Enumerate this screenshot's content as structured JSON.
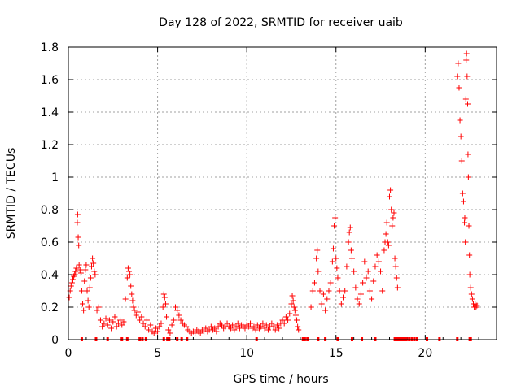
{
  "chart_data": {
    "type": "scatter",
    "title": "Day 128 of 2022, SRMTID for receiver uaib",
    "xlabel": "GPS time / hours",
    "ylabel": "SRMTID / TECUs",
    "xlim": [
      0,
      24
    ],
    "ylim": [
      0,
      1.8
    ],
    "xticks": [
      0,
      5,
      10,
      15,
      20
    ],
    "yticks": [
      0,
      0.2,
      0.4,
      0.6,
      0.8,
      1,
      1.2,
      1.4,
      1.6,
      1.8
    ],
    "xtick_labels": [
      "0",
      "5",
      "10",
      "15",
      "20"
    ],
    "ytick_labels": [
      "0",
      "0.2",
      "0.4",
      "0.6",
      "0.8",
      "1",
      "1.2",
      "1.4",
      "1.6",
      "1.8"
    ],
    "grid": true,
    "marker": "+",
    "color": "#ff0000",
    "series": [
      {
        "name": "SRMTID",
        "points": [
          [
            0.05,
            0.26
          ],
          [
            0.1,
            0.3
          ],
          [
            0.15,
            0.33
          ],
          [
            0.2,
            0.35
          ],
          [
            0.25,
            0.37
          ],
          [
            0.3,
            0.39
          ],
          [
            0.35,
            0.4
          ],
          [
            0.4,
            0.42
          ],
          [
            0.45,
            0.44
          ],
          [
            0.5,
            0.72
          ],
          [
            0.52,
            0.77
          ],
          [
            0.55,
            0.63
          ],
          [
            0.58,
            0.58
          ],
          [
            0.6,
            0.46
          ],
          [
            0.65,
            0.43
          ],
          [
            0.7,
            0.41
          ],
          [
            0.75,
            0.3
          ],
          [
            0.8,
            0.22
          ],
          [
            0.85,
            0.18
          ],
          [
            0.9,
            0.36
          ],
          [
            0.95,
            0.43
          ],
          [
            1.0,
            0.46
          ],
          [
            1.05,
            0.3
          ],
          [
            1.1,
            0.24
          ],
          [
            1.15,
            0.2
          ],
          [
            1.2,
            0.32
          ],
          [
            1.25,
            0.38
          ],
          [
            1.3,
            0.45
          ],
          [
            1.35,
            0.5
          ],
          [
            1.4,
            0.47
          ],
          [
            1.45,
            0.42
          ],
          [
            1.5,
            0.4
          ],
          [
            1.6,
            0.18
          ],
          [
            1.7,
            0.2
          ],
          [
            1.8,
            0.12
          ],
          [
            1.9,
            0.08
          ],
          [
            2.0,
            0.1
          ],
          [
            2.1,
            0.13
          ],
          [
            2.2,
            0.09
          ],
          [
            2.3,
            0.12
          ],
          [
            2.4,
            0.07
          ],
          [
            2.5,
            0.11
          ],
          [
            2.6,
            0.14
          ],
          [
            2.7,
            0.08
          ],
          [
            2.8,
            0.1
          ],
          [
            2.9,
            0.12
          ],
          [
            3.0,
            0.09
          ],
          [
            3.1,
            0.11
          ],
          [
            3.2,
            0.25
          ],
          [
            3.3,
            0.38
          ],
          [
            3.35,
            0.44
          ],
          [
            3.4,
            0.42
          ],
          [
            3.45,
            0.4
          ],
          [
            3.5,
            0.33
          ],
          [
            3.55,
            0.28
          ],
          [
            3.6,
            0.24
          ],
          [
            3.65,
            0.2
          ],
          [
            3.7,
            0.18
          ],
          [
            3.8,
            0.15
          ],
          [
            3.9,
            0.17
          ],
          [
            4.0,
            0.12
          ],
          [
            4.1,
            0.14
          ],
          [
            4.2,
            0.1
          ],
          [
            4.3,
            0.08
          ],
          [
            4.4,
            0.12
          ],
          [
            4.5,
            0.06
          ],
          [
            4.6,
            0.09
          ],
          [
            4.7,
            0.05
          ],
          [
            4.8,
            0.04
          ],
          [
            4.9,
            0.07
          ],
          [
            5.0,
            0.05
          ],
          [
            5.1,
            0.08
          ],
          [
            5.2,
            0.1
          ],
          [
            5.3,
            0.2
          ],
          [
            5.35,
            0.28
          ],
          [
            5.4,
            0.26
          ],
          [
            5.45,
            0.22
          ],
          [
            5.5,
            0.14
          ],
          [
            5.6,
            0.06
          ],
          [
            5.7,
            0.04
          ],
          [
            5.8,
            0.09
          ],
          [
            5.9,
            0.12
          ],
          [
            6.0,
            0.2
          ],
          [
            6.1,
            0.18
          ],
          [
            6.2,
            0.15
          ],
          [
            6.3,
            0.12
          ],
          [
            6.4,
            0.1
          ],
          [
            6.5,
            0.09
          ],
          [
            6.6,
            0.08
          ],
          [
            6.7,
            0.06
          ],
          [
            6.8,
            0.05
          ],
          [
            6.9,
            0.04
          ],
          [
            7.0,
            0.05
          ],
          [
            7.1,
            0.04
          ],
          [
            7.2,
            0.06
          ],
          [
            7.3,
            0.05
          ],
          [
            7.4,
            0.04
          ],
          [
            7.5,
            0.06
          ],
          [
            7.6,
            0.05
          ],
          [
            7.7,
            0.07
          ],
          [
            7.8,
            0.05
          ],
          [
            7.9,
            0.06
          ],
          [
            8.0,
            0.08
          ],
          [
            8.1,
            0.06
          ],
          [
            8.2,
            0.07
          ],
          [
            8.3,
            0.05
          ],
          [
            8.4,
            0.08
          ],
          [
            8.5,
            0.1
          ],
          [
            8.6,
            0.09
          ],
          [
            8.7,
            0.07
          ],
          [
            8.8,
            0.08
          ],
          [
            8.9,
            0.1
          ],
          [
            9.0,
            0.08
          ],
          [
            9.1,
            0.07
          ],
          [
            9.2,
            0.09
          ],
          [
            9.3,
            0.06
          ],
          [
            9.4,
            0.08
          ],
          [
            9.5,
            0.1
          ],
          [
            9.6,
            0.07
          ],
          [
            9.7,
            0.09
          ],
          [
            9.8,
            0.08
          ],
          [
            9.9,
            0.07
          ],
          [
            10.0,
            0.09
          ],
          [
            10.1,
            0.08
          ],
          [
            10.2,
            0.1
          ],
          [
            10.3,
            0.07
          ],
          [
            10.4,
            0.08
          ],
          [
            10.5,
            0.06
          ],
          [
            10.6,
            0.09
          ],
          [
            10.7,
            0.07
          ],
          [
            10.8,
            0.08
          ],
          [
            10.9,
            0.1
          ],
          [
            11.0,
            0.07
          ],
          [
            11.1,
            0.09
          ],
          [
            11.2,
            0.06
          ],
          [
            11.3,
            0.08
          ],
          [
            11.4,
            0.1
          ],
          [
            11.5,
            0.08
          ],
          [
            11.6,
            0.06
          ],
          [
            11.7,
            0.09
          ],
          [
            11.8,
            0.07
          ],
          [
            11.9,
            0.1
          ],
          [
            12.0,
            0.12
          ],
          [
            12.1,
            0.1
          ],
          [
            12.2,
            0.14
          ],
          [
            12.3,
            0.12
          ],
          [
            12.4,
            0.16
          ],
          [
            12.5,
            0.22
          ],
          [
            12.55,
            0.27
          ],
          [
            12.6,
            0.24
          ],
          [
            12.65,
            0.2
          ],
          [
            12.7,
            0.18
          ],
          [
            12.75,
            0.15
          ],
          [
            12.8,
            0.12
          ],
          [
            12.85,
            0.08
          ],
          [
            12.9,
            0.06
          ],
          [
            13.6,
            0.2
          ],
          [
            13.7,
            0.3
          ],
          [
            13.8,
            0.35
          ],
          [
            13.9,
            0.5
          ],
          [
            13.95,
            0.55
          ],
          [
            14.0,
            0.42
          ],
          [
            14.1,
            0.3
          ],
          [
            14.2,
            0.22
          ],
          [
            14.3,
            0.28
          ],
          [
            14.4,
            0.18
          ],
          [
            14.5,
            0.25
          ],
          [
            14.6,
            0.3
          ],
          [
            14.7,
            0.35
          ],
          [
            14.8,
            0.48
          ],
          [
            14.85,
            0.56
          ],
          [
            14.9,
            0.7
          ],
          [
            14.95,
            0.75
          ],
          [
            15.0,
            0.5
          ],
          [
            15.05,
            0.44
          ],
          [
            15.1,
            0.38
          ],
          [
            15.2,
            0.3
          ],
          [
            15.3,
            0.22
          ],
          [
            15.4,
            0.26
          ],
          [
            15.5,
            0.3
          ],
          [
            15.6,
            0.45
          ],
          [
            15.7,
            0.6
          ],
          [
            15.75,
            0.66
          ],
          [
            15.8,
            0.69
          ],
          [
            15.85,
            0.55
          ],
          [
            15.9,
            0.5
          ],
          [
            16.0,
            0.42
          ],
          [
            16.1,
            0.32
          ],
          [
            16.2,
            0.25
          ],
          [
            16.3,
            0.22
          ],
          [
            16.4,
            0.28
          ],
          [
            16.5,
            0.35
          ],
          [
            16.6,
            0.48
          ],
          [
            16.7,
            0.38
          ],
          [
            16.8,
            0.42
          ],
          [
            16.9,
            0.3
          ],
          [
            17.0,
            0.25
          ],
          [
            17.1,
            0.36
          ],
          [
            17.2,
            0.45
          ],
          [
            17.3,
            0.52
          ],
          [
            17.4,
            0.48
          ],
          [
            17.5,
            0.42
          ],
          [
            17.6,
            0.3
          ],
          [
            17.7,
            0.55
          ],
          [
            17.75,
            0.6
          ],
          [
            17.8,
            0.65
          ],
          [
            17.85,
            0.72
          ],
          [
            17.9,
            0.6
          ],
          [
            17.95,
            0.58
          ],
          [
            18.0,
            0.88
          ],
          [
            18.05,
            0.92
          ],
          [
            18.1,
            0.8
          ],
          [
            18.15,
            0.7
          ],
          [
            18.2,
            0.75
          ],
          [
            18.25,
            0.78
          ],
          [
            18.3,
            0.5
          ],
          [
            18.35,
            0.45
          ],
          [
            18.4,
            0.38
          ],
          [
            18.45,
            0.32
          ],
          [
            21.8,
            1.62
          ],
          [
            21.85,
            1.7
          ],
          [
            21.9,
            1.55
          ],
          [
            21.95,
            1.35
          ],
          [
            22.0,
            1.25
          ],
          [
            22.05,
            1.1
          ],
          [
            22.1,
            0.9
          ],
          [
            22.15,
            0.85
          ],
          [
            22.2,
            0.72
          ],
          [
            22.22,
            0.75
          ],
          [
            22.25,
            0.6
          ],
          [
            22.28,
            1.48
          ],
          [
            22.3,
            1.72
          ],
          [
            22.32,
            1.76
          ],
          [
            22.35,
            1.62
          ],
          [
            22.38,
            1.45
          ],
          [
            22.4,
            1.14
          ],
          [
            22.42,
            1.0
          ],
          [
            22.45,
            0.7
          ],
          [
            22.48,
            0.52
          ],
          [
            22.5,
            0.4
          ],
          [
            22.55,
            0.32
          ],
          [
            22.6,
            0.28
          ],
          [
            22.65,
            0.25
          ],
          [
            22.7,
            0.22
          ],
          [
            22.75,
            0.2
          ],
          [
            22.8,
            0.22
          ],
          [
            22.85,
            0.2
          ],
          [
            22.9,
            0.21
          ]
        ]
      }
    ],
    "zero_markers_x": [
      0.75,
      1.55,
      2.2,
      3.0,
      3.3,
      4.0,
      4.15,
      4.35,
      5.35,
      5.55,
      5.65,
      6.1,
      6.35,
      6.65,
      10.55,
      13.15,
      13.25,
      13.4,
      14.0,
      14.4,
      15.1,
      15.9,
      16.45,
      17.2,
      18.3,
      18.45,
      18.55,
      18.7,
      18.8,
      18.95,
      19.1,
      19.25,
      19.4,
      19.55,
      20.1,
      20.8,
      21.8,
      22.5,
      22.55
    ]
  }
}
